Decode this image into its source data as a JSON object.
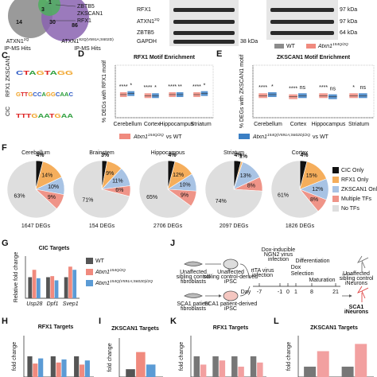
{
  "venn": {
    "counts": [
      14,
      3,
      1,
      30,
      86
    ],
    "zbtb5": "ZBTB5",
    "zkscan1": "ZKSCAN1",
    "rfx1": "RFX1",
    "set_a": {
      "text": "ATXN1",
      "sup": "2Q",
      "line2": "IP-MS Hits"
    },
    "set_b": {
      "text": "ATXN1",
      "sup": "82Q(V591A;S602D)",
      "line2": "IP-MS Hits"
    }
  },
  "blot": {
    "rows": [
      {
        "text": "RFX1"
      },
      {
        "text": "ATXN1",
        "sup": "2Q"
      },
      {
        "text": "ZBTB5"
      },
      {
        "text": "GAPDH"
      }
    ],
    "markers_left": [
      "38 kDa"
    ],
    "markers_right": [
      "97 kDa",
      "97 kDa",
      "64 kDa"
    ],
    "legend": [
      {
        "text": "WT",
        "color": "#8c8c8c"
      },
      {
        "text": "Atxn1",
        "sup": "154Q/2Q",
        "color": "#f08a7e"
      }
    ]
  },
  "panels": {
    "c": "C",
    "d": "D",
    "e": "E",
    "f": "F",
    "g": "G",
    "h": "H",
    "i": "I",
    "j": "J",
    "k": "K",
    "l": "L"
  },
  "motifs": [
    {
      "name": "ZKSCAN1",
      "seq": "CTAGTAGG"
    },
    {
      "name": "RFX1",
      "seq": "GTTGCCAGGCAAC"
    },
    {
      "name": "CIC",
      "seq": "TTTGAATGAA"
    }
  ],
  "enrichment_legend": [
    {
      "text": "Atxn1",
      "sup": "154Q/2Q",
      "suffix": "vs WT",
      "color": "#f08a7e"
    },
    {
      "text": "Atxn1",
      "sup": "154Q(V591A;S602D)/2Q",
      "suffix": "vs WT",
      "color": "#3b7fc4"
    }
  ],
  "enrichment": [
    {
      "type": "box",
      "title": "RFX1 Motif Enrichment",
      "ylabel": "% DEGs with RFX1 motif",
      "categories": [
        "Cerebellum",
        "Cortex",
        "Hippocampus",
        "Striatum"
      ],
      "ylim": [
        0,
        50
      ],
      "series": [
        {
          "values": [
            22,
            21,
            22,
            22
          ],
          "annotations": [
            "****",
            "****",
            "****",
            "****"
          ]
        },
        {
          "values": [
            23,
            21,
            22,
            23
          ],
          "annotations": [
            "*",
            "*",
            "**",
            "*"
          ]
        }
      ]
    },
    {
      "type": "box",
      "title": "ZKSCAN1 Motif Enrichment",
      "ylabel": "% DEGs with ZKSCAN1 motif",
      "categories": [
        "Cerebellum",
        "Cortex",
        "Hippocampus",
        "Striatum"
      ],
      "ylim": [
        0,
        50
      ],
      "series": [
        {
          "values": [
            21,
            20,
            21,
            21
          ],
          "annotations": [
            "****",
            "****",
            "****",
            "*"
          ]
        },
        {
          "values": [
            22,
            21,
            20,
            21
          ],
          "annotations": [
            "*",
            "ns",
            "ns",
            "ns"
          ]
        }
      ]
    }
  ],
  "tf_pies": {
    "type": "pie",
    "slices": [
      "CIC Only",
      "RFX1 Only",
      "ZKSCAN1 Only",
      "Multiple TFs",
      "No TFs"
    ],
    "colors": [
      "#111111",
      "#f5ae5c",
      "#a8c3e4",
      "#ef9488",
      "#dedede"
    ],
    "pies": [
      {
        "title": "Cerebellum",
        "total": "1647 DEGs",
        "values": [
          4,
          14,
          10,
          9,
          63
        ],
        "value_labels": [
          "4%",
          "14%",
          "10%",
          "9%",
          "63%"
        ]
      },
      {
        "title": "Brainstem",
        "total": "154 DEGs",
        "values": [
          3,
          9,
          11,
          6,
          71
        ],
        "value_labels": [
          "3%",
          "9%",
          "11%",
          "6%",
          "71%"
        ]
      },
      {
        "title": "Hippocampus",
        "total": "2706 DEGs",
        "values": [
          4,
          12,
          10,
          9,
          65
        ],
        "value_labels": [
          "4%",
          "12%",
          "10%",
          "9%",
          "65%"
        ]
      },
      {
        "title": "Striatum",
        "total": "2097 DEGs",
        "values": [
          4,
          1,
          13,
          8,
          74
        ],
        "value_labels": [
          "4%",
          "1%",
          "13%",
          "8%",
          "74%"
        ]
      },
      {
        "title": "Cortex",
        "total": "1826 DEGs",
        "values": [
          4,
          15,
          12,
          8,
          61
        ],
        "value_labels": [
          "4%",
          "15%",
          "12%",
          "8%",
          "61%"
        ]
      }
    ]
  },
  "cic_targets": {
    "type": "bar",
    "title": "CIC Targets",
    "ylabel": "Relative fold change",
    "categories": [
      "Usp28",
      "Dpf1",
      "Svep1"
    ],
    "ylim": [
      0,
      2
    ],
    "series": [
      {
        "name": {
          "text": "WT"
        },
        "color": "#555555",
        "values": [
          1,
          1,
          1
        ]
      },
      {
        "name": {
          "text": "Atxn1",
          "sup": "154Q/2Q"
        },
        "color": "#f08a7e",
        "values": [
          1.35,
          1.05,
          1.5
        ]
      },
      {
        "name": {
          "text": "Atxn1",
          "sup": "154Q(V591A;S602D)/2Q"
        },
        "color": "#5b9bd5",
        "values": [
          0.95,
          0.85,
          1.35
        ]
      }
    ]
  },
  "rfx1_targets_mouse": {
    "type": "bar",
    "title": "RFX1 Targets",
    "ylabel": "fold change",
    "categories": [
      null,
      null,
      null
    ],
    "ylim": [
      0,
      2
    ],
    "series": [
      {
        "color": "#555555",
        "values": [
          1,
          1,
          1
        ]
      },
      {
        "color": "#f08a7e",
        "values": [
          0.65,
          0.7,
          0.6
        ]
      },
      {
        "color": "#5b9bd5",
        "values": [
          0.9,
          0.85,
          0.8
        ]
      }
    ]
  },
  "zkscan1_targets_mouse": {
    "type": "bar",
    "title": "ZKSCAN1 Targets",
    "ylabel": "fold change",
    "categories": [
      null
    ],
    "ylim": [
      0,
      5
    ],
    "series": [
      {
        "color": "#555555",
        "values": [
          1
        ]
      },
      {
        "color": "#f08a7e",
        "values": [
          3.2
        ]
      },
      {
        "color": "#5b9bd5",
        "values": [
          1.6
        ]
      }
    ]
  },
  "rfx1_targets_ineuron": {
    "type": "bar",
    "title": "RFX1 Targets",
    "ylabel": "fold change",
    "categories": [
      null,
      null,
      null,
      null
    ],
    "ylim": [
      0,
      2
    ],
    "series": [
      {
        "color": "#777777",
        "values": [
          1,
          1,
          1,
          1
        ]
      },
      {
        "color": "#f2a0a0",
        "values": [
          0.6,
          0.8,
          0.5,
          0.7
        ]
      }
    ]
  },
  "zkscan1_targets_ineuron": {
    "type": "bar",
    "title": "ZKSCAN1 Targets",
    "ylabel": "fold change",
    "categories": [
      null,
      null
    ],
    "ylim": [
      0,
      4
    ],
    "series": [
      {
        "color": "#777777",
        "values": [
          1,
          1
        ]
      },
      {
        "color": "#f2a0a0",
        "values": [
          2.5,
          3.2
        ]
      }
    ]
  },
  "protocol": {
    "ctrl_fib": [
      "Unaffected",
      "sibling control",
      "fibroblasts"
    ],
    "ctrl_ipsc": [
      "Unaffected",
      "sibling control-derived",
      "iPSC"
    ],
    "sca1_fib": [
      "SCA1 patient",
      "fibroblasts"
    ],
    "sca1_ipsc": [
      "SCA1 patient-derived",
      "iPSC"
    ],
    "steps": {
      "rtta": [
        "rtTA virus",
        "infection"
      ],
      "ngn2": [
        "Dox-inducible",
        "NGN2 virus",
        "infection"
      ],
      "dox": "Dox",
      "selection": "Selection",
      "diff": "Differentiation",
      "mat": "Maturation"
    },
    "day": "Day",
    "days": [
      "-7",
      "-1",
      "0",
      "1",
      "8",
      "21"
    ],
    "out_ctrl": [
      "Unaffected",
      "sibling control",
      "iNeurons"
    ],
    "out_sca1": [
      "SCA1",
      "iNeurons"
    ]
  }
}
